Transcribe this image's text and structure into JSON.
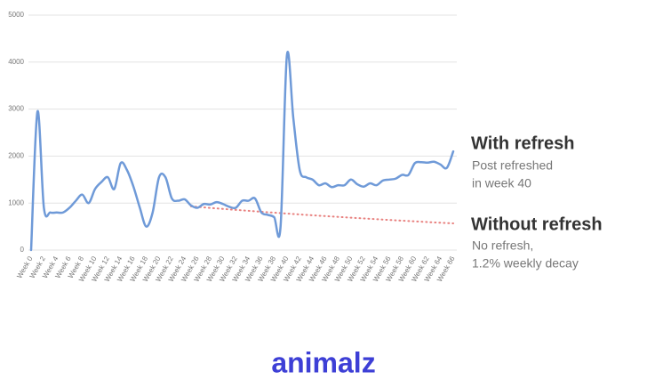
{
  "chart_data": {
    "type": "line",
    "categories": [
      "Week 0",
      null,
      "Week 2",
      null,
      "Week 4",
      null,
      "Week 6",
      null,
      "Week 8",
      null,
      "Week 10",
      null,
      "Week 12",
      null,
      "Week 14",
      null,
      "Week 16",
      null,
      "Week 18",
      null,
      "Week 20",
      null,
      "Week 22",
      null,
      "Week 24",
      null,
      "Week 26",
      null,
      "Week 28",
      null,
      "Week 30",
      null,
      "Week 32",
      null,
      "Week 34",
      null,
      "Week 36",
      null,
      "Week 38",
      null,
      "Week 40",
      null,
      "Week 42",
      null,
      "Week 44",
      null,
      "Week 46",
      null,
      "Week 48",
      null,
      "Week 50",
      null,
      "Week 52",
      null,
      "Week 54",
      null,
      "Week 56",
      null,
      "Week 58",
      null,
      "Week 60",
      null,
      "Week 62",
      null,
      "Week 64",
      null,
      "Week 66"
    ],
    "series": [
      {
        "name": "With refresh",
        "color": "#6f9ad8",
        "style": "solid",
        "values": [
          0,
          2950,
          900,
          800,
          800,
          800,
          900,
          1050,
          1180,
          1000,
          1300,
          1450,
          1550,
          1300,
          1850,
          1700,
          1350,
          900,
          500,
          800,
          1550,
          1550,
          1100,
          1050,
          1080,
          950,
          900,
          980,
          970,
          1020,
          980,
          920,
          900,
          1050,
          1050,
          1100,
          800,
          750,
          700,
          500,
          4150,
          2800,
          1700,
          1550,
          1500,
          1380,
          1420,
          1340,
          1380,
          1380,
          1500,
          1400,
          1350,
          1420,
          1380,
          1480,
          1500,
          1520,
          1600,
          1600,
          1850,
          1870,
          1860,
          1880,
          1820,
          1750,
          2100
        ]
      },
      {
        "name": "Without refresh",
        "color": "#e8817f",
        "style": "dotted",
        "values": [
          null,
          null,
          null,
          null,
          null,
          null,
          null,
          null,
          null,
          null,
          null,
          null,
          null,
          null,
          null,
          null,
          null,
          null,
          null,
          null,
          null,
          null,
          null,
          null,
          null,
          930,
          919,
          908,
          897,
          886,
          876,
          865,
          855,
          845,
          835,
          825,
          815,
          805,
          796,
          786,
          777,
          767,
          758,
          749,
          740,
          731,
          723,
          714,
          706,
          697,
          689,
          681,
          673,
          665,
          657,
          649,
          641,
          633,
          626,
          618,
          611,
          604,
          596,
          589,
          582,
          575,
          568
        ]
      }
    ],
    "annotations": [
      "Post refreshed",
      "in week 40",
      "No refresh,",
      "1.2% weekly decay"
    ],
    "ylim": [
      0,
      5000
    ],
    "yticks": [
      0,
      1000,
      2000,
      3000,
      4000,
      5000
    ],
    "grid": true
  },
  "logo": "animalz"
}
